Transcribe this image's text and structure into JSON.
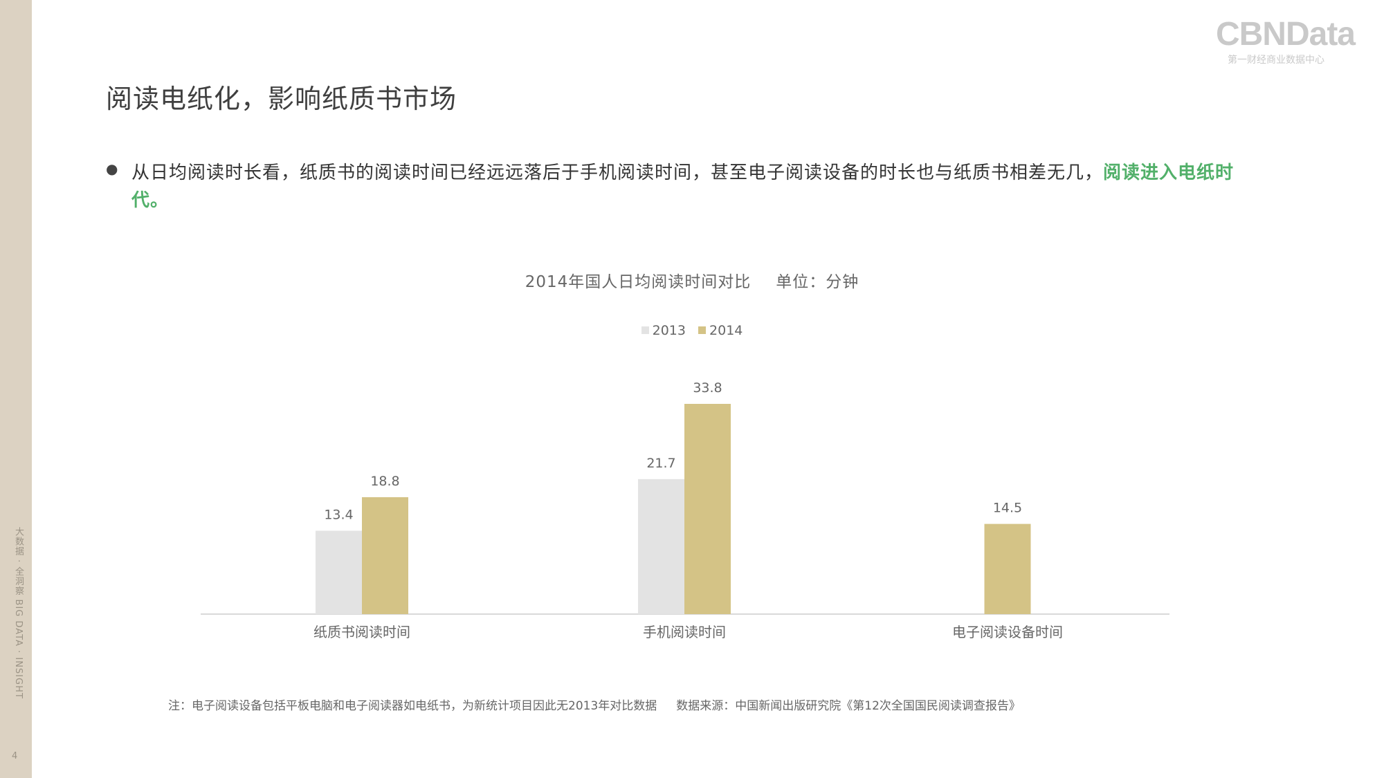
{
  "sidebar": {
    "vertical_text": "大数据 · 全洞察 BIG DATA · INSIGHT",
    "page_number": "4"
  },
  "logo": {
    "main": "CBNData",
    "sub": "第一财经商业数据中心"
  },
  "title": "阅读电纸化，影响纸质书市场",
  "bullet": {
    "text": "从日均阅读时长看，纸质书的阅读时间已经远远落后于手机阅读时间，甚至电子阅读设备的时长也与纸质书相差无几，",
    "highlight": "阅读进入电纸时代。"
  },
  "chart_data": {
    "type": "bar",
    "title": "2014年国人日均阅读时间对比",
    "unit": "单位：分钟",
    "categories": [
      "纸质书阅读时间",
      "手机阅读时间",
      "电子阅读设备时间"
    ],
    "series": [
      {
        "name": "2013",
        "color": "#e3e3e3",
        "values": [
          13.4,
          21.7,
          null
        ]
      },
      {
        "name": "2014",
        "color": "#d4c386",
        "values": [
          18.8,
          33.8,
          14.5
        ]
      }
    ],
    "ylim": [
      0,
      40
    ],
    "grid": false,
    "legend": "top-center"
  },
  "footnote": {
    "note": "注：电子阅读设备包括平板电脑和电子阅读器如电纸书，为新统计项目因此无2013年对比数据",
    "source": "数据来源：中国新闻出版研究院《第12次全国国民阅读调查报告》"
  }
}
